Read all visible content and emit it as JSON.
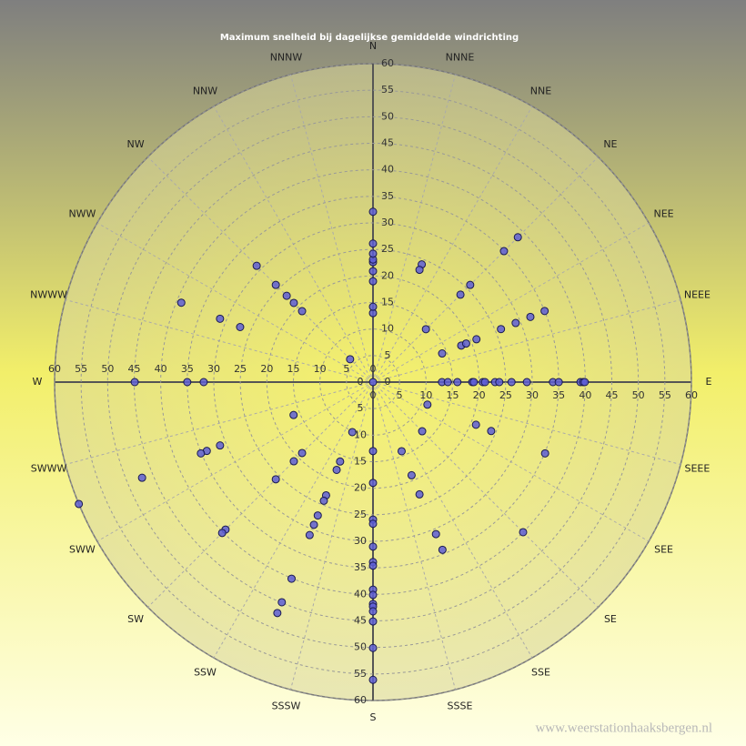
{
  "chart_data": {
    "type": "polar-scatter",
    "title": "Maximum  snelheid  bij  dagelijkse  gemiddelde  windrichting",
    "directions": [
      "N",
      "NNNE",
      "NNE",
      "NE",
      "NEE",
      "NEEE",
      "E",
      "SEEE",
      "SEE",
      "SE",
      "SSE",
      "SSSE",
      "S",
      "SSSW",
      "SSW",
      "SW",
      "SWW",
      "SWWW",
      "W",
      "NWWW",
      "NWW",
      "NW",
      "NNW",
      "NNNW"
    ],
    "rlim": [
      0,
      60
    ],
    "rticks": [
      0,
      5,
      10,
      15,
      20,
      25,
      30,
      35,
      40,
      45,
      50,
      55,
      60
    ],
    "grid": true,
    "color": "#5e5ed6",
    "x": [
      0,
      0,
      0,
      0,
      0,
      0,
      0,
      0,
      0,
      0,
      22.5,
      22.5,
      45,
      45,
      45,
      45,
      45,
      67.5,
      67.5,
      67.5,
      67.5,
      67.5,
      67.5,
      67.5,
      67.5,
      90,
      90,
      90,
      90,
      90,
      90,
      90,
      90,
      90,
      90,
      90,
      90,
      90,
      90,
      90,
      90,
      112.5,
      112.5,
      112.5,
      112.5,
      135,
      135,
      157.5,
      157.5,
      157.5,
      157.5,
      157.5,
      180,
      180,
      180,
      180,
      180,
      180,
      180,
      180,
      180,
      180,
      180,
      180,
      180,
      180,
      180,
      202.5,
      202.5,
      202.5,
      202.5,
      202.5,
      202.5,
      202.5,
      202.5,
      202.5,
      202.5,
      202.5,
      225,
      225,
      225,
      225,
      225,
      247.5,
      247.5,
      247.5,
      247.5,
      247.5,
      247.5,
      270,
      270,
      270,
      292.5,
      292.5,
      292.5,
      315,
      315,
      315,
      315,
      315,
      315
    ],
    "values": [
      0,
      13,
      14.2,
      19,
      20.9,
      22.6,
      23.1,
      24.2,
      26.1,
      32.1,
      24,
      22.9,
      38.6,
      34.9,
      25.9,
      23.3,
      14.1,
      14.1,
      18,
      19,
      21.1,
      26.1,
      29.1,
      32.1,
      35,
      13,
      14.1,
      15.9,
      18.7,
      19,
      20.7,
      21.1,
      23,
      23.8,
      26.1,
      29,
      33.9,
      35,
      39.1,
      39.6,
      39.9,
      11.1,
      21,
      24.1,
      35.1,
      13.1,
      40,
      14.1,
      19,
      22.9,
      31,
      34.2,
      13,
      19,
      25.9,
      26.7,
      31,
      33.9,
      34.6,
      39.1,
      40.1,
      41.8,
      42.3,
      43.2,
      45.1,
      50.1,
      56.1,
      10.2,
      16.2,
      17.9,
      23.1,
      24.2,
      27.2,
      29.1,
      31.2,
      40.1,
      44.9,
      47.1,
      18.9,
      21.1,
      25.9,
      39.3,
      40.2,
      16.2,
      31.2,
      33.9,
      35.1,
      47.1,
      60,
      44.9,
      35,
      31.9,
      27.1,
      31.2,
      39.1,
      6.1,
      18.9,
      21.1,
      23,
      25.9,
      31
    ]
  },
  "watermark": "www.weerstationhaaksbergen.nl"
}
